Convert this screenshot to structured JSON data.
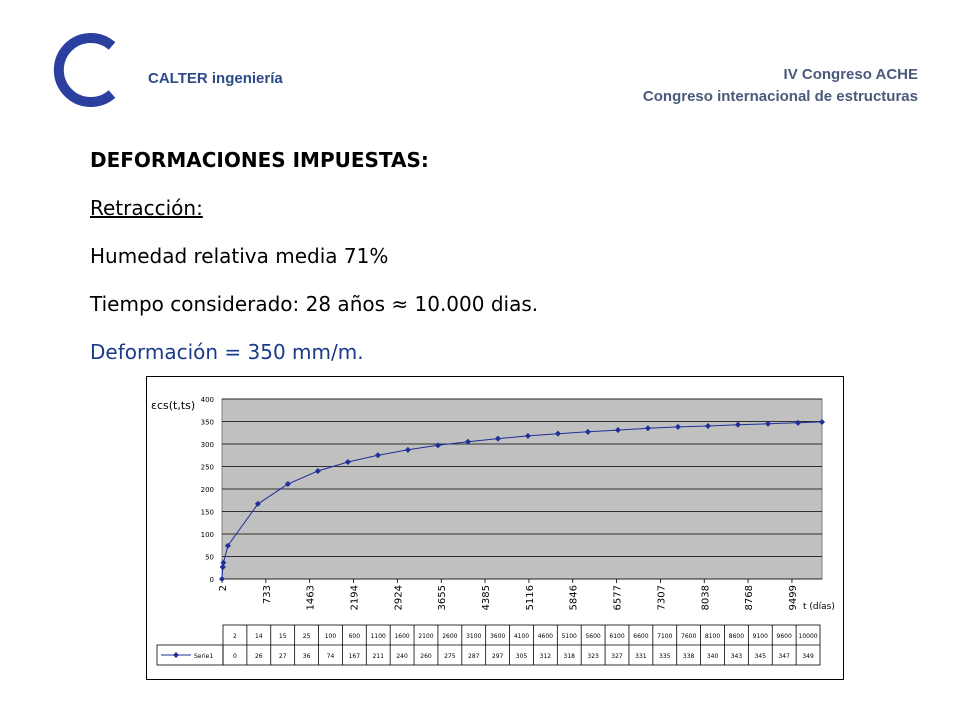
{
  "header": {
    "company": "CALTER ingeniería",
    "congress_line1": "IV Congreso ACHE",
    "congress_line2": "Congreso internacional de estructuras"
  },
  "content": {
    "title": "DEFORMACIONES IMPUESTAS:",
    "subtitle": "Retracción:",
    "humidity": "Humedad relativa media 71%",
    "time": "Tiempo considerado: 28 años ≈ 10.000 dias.",
    "deformation": "Deformación = 350 mm/m."
  },
  "colors": {
    "title_blue": "#1a3a8a",
    "company_blue": "#2c4a86",
    "logo_blue": "#2b3fa0",
    "plot_bg": "#c0c0c0",
    "series": "#1f2f9a"
  },
  "chart_data": {
    "type": "line",
    "ylabel": "εcs(t,ts)",
    "xlabel": "t (días)",
    "ylim": [
      0,
      400
    ],
    "yticks": [
      0,
      50,
      100,
      150,
      200,
      250,
      300,
      350,
      400
    ],
    "xtick_labels": [
      "2",
      "733",
      "1463",
      "2194",
      "2924",
      "3655",
      "4385",
      "5116",
      "5846",
      "6577",
      "7307",
      "8038",
      "8768",
      "9499"
    ],
    "x": [
      2,
      14,
      15,
      25,
      100,
      600,
      1100,
      1600,
      2100,
      2600,
      3100,
      3600,
      4100,
      4600,
      5100,
      5600,
      6100,
      6600,
      7100,
      7600,
      8100,
      8600,
      9100,
      9600,
      10000
    ],
    "series": [
      {
        "name": "Serie1",
        "values": [
          0,
          26,
          27,
          36,
          74,
          167,
          211,
          240,
          260,
          275,
          287,
          297,
          305,
          312,
          318,
          323,
          327,
          331,
          335,
          338,
          340,
          343,
          345,
          347,
          349
        ]
      }
    ],
    "grid": true,
    "legend": "table-below"
  }
}
